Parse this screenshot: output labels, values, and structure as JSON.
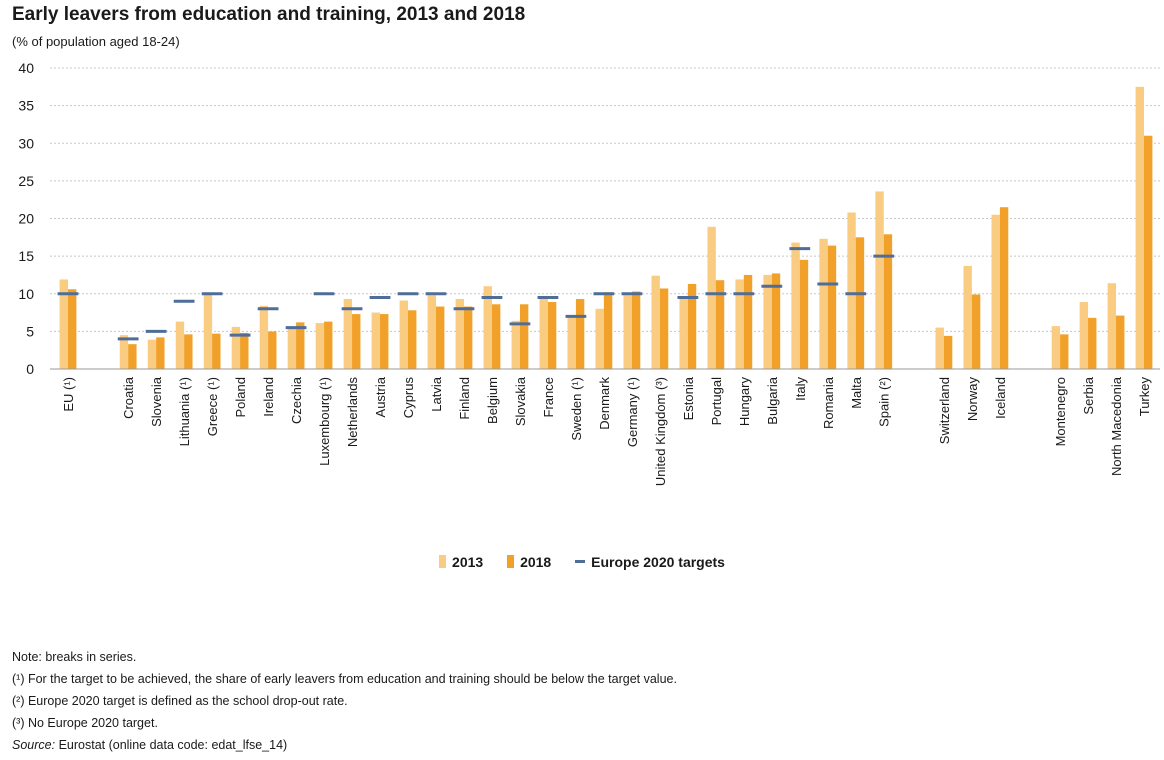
{
  "chart_data": {
    "type": "bar",
    "title": "Early leavers from education and training, 2013 and 2018",
    "subtitle": "(% of population aged 18-24)",
    "ylim": [
      0,
      40
    ],
    "yticks": [
      0,
      5,
      10,
      15,
      20,
      25,
      30,
      35,
      40
    ],
    "grid": true,
    "legend_position": "bottom",
    "colors": {
      "2013": "#f9cc82",
      "2018": "#f1a12a",
      "target": "#4e6e99",
      "axis": "#1a1a1a",
      "grid": "#c8c8c8"
    },
    "categories": [
      "EU (¹)",
      "Croatia",
      "Slovenia",
      "Lithuania (¹)",
      "Greece (¹)",
      "Poland",
      "Ireland",
      "Czechia",
      "Luxembourg (¹)",
      "Netherlands",
      "Austria",
      "Cyprus",
      "Latvia",
      "Finland",
      "Belgium",
      "Slovakia",
      "France",
      "Sweden (¹)",
      "Denmark",
      "Germany (¹)",
      "United Kingdom (³)",
      "Estonia",
      "Portugal",
      "Hungary",
      "Bulgaria",
      "Italy",
      "Romania",
      "Malta",
      "Spain (²)",
      "Switzerland",
      "Norway",
      "Iceland",
      "Montenegro",
      "Serbia",
      "North Macedonia",
      "Turkey"
    ],
    "groups": [
      0,
      1,
      1,
      1,
      1,
      1,
      1,
      1,
      1,
      1,
      1,
      1,
      1,
      1,
      1,
      1,
      1,
      1,
      1,
      1,
      1,
      1,
      1,
      1,
      1,
      1,
      1,
      1,
      1,
      2,
      2,
      2,
      3,
      3,
      3,
      3
    ],
    "series": [
      {
        "name": "2013",
        "values": [
          11.9,
          4.5,
          3.9,
          6.3,
          10.1,
          5.6,
          8.4,
          5.4,
          6.1,
          9.3,
          7.5,
          9.1,
          9.8,
          9.3,
          11.0,
          6.4,
          9.7,
          7.1,
          8.0,
          9.8,
          12.4,
          9.7,
          18.9,
          11.9,
          12.5,
          16.8,
          17.3,
          20.8,
          23.6,
          5.5,
          13.7,
          20.5,
          5.7,
          8.9,
          11.4,
          37.5
        ]
      },
      {
        "name": "2018",
        "values": [
          10.6,
          3.3,
          4.2,
          4.6,
          4.7,
          4.8,
          5.0,
          6.2,
          6.3,
          7.3,
          7.3,
          7.8,
          8.3,
          8.3,
          8.6,
          8.6,
          8.9,
          9.3,
          10.2,
          10.3,
          10.7,
          11.3,
          11.8,
          12.5,
          12.7,
          14.5,
          16.4,
          17.5,
          17.9,
          4.4,
          9.9,
          21.5,
          4.6,
          6.8,
          7.1,
          31.0
        ]
      },
      {
        "name": "Europe 2020 targets",
        "values": [
          10.0,
          4.0,
          5.0,
          9.0,
          10.0,
          4.5,
          8.0,
          5.5,
          10.0,
          8.0,
          9.5,
          10.0,
          10.0,
          8.0,
          9.5,
          6.0,
          9.5,
          7.0,
          10.0,
          10.0,
          null,
          9.5,
          10.0,
          10.0,
          11.0,
          16.0,
          11.3,
          10.0,
          15.0,
          null,
          null,
          null,
          null,
          null,
          null,
          null
        ]
      }
    ]
  },
  "legend": {
    "item_2013": "2013",
    "item_2018": "2018",
    "item_target": "Europe 2020 targets"
  },
  "notes": {
    "line1": "Note: breaks in series.",
    "line2": "(¹) For the target to be achieved, the share of early leavers from education and training should be below the target value.",
    "line3": "(²) Europe 2020 target is defined as the school drop-out rate.",
    "line4": "(³) No Europe 2020 target.",
    "source_label": "Source:",
    "source_text": " Eurostat (online data code: edat_lfse_14)"
  }
}
